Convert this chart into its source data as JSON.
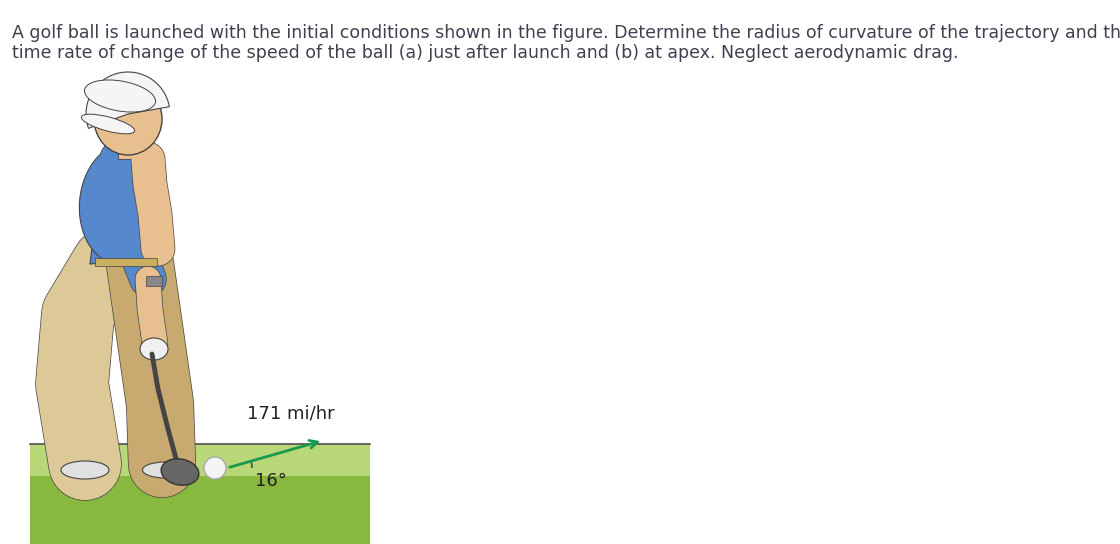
{
  "title_line1": "A golf ball is launched with the initial conditions shown in the figure. Determine the radius of curvature of the trajectory and the",
  "title_line2": "time rate of change of the speed of the ball (a) just after launch and (b) at apex. Neglect aerodynamic drag.",
  "title_fontsize": 12.5,
  "title_color": "#404050",
  "speed_label": "171 mi/hr",
  "angle_label": "16°",
  "arrow_color": "#1a9950",
  "label_fontsize": 13,
  "background_color": "#ffffff",
  "ground_green_light": "#b8d878",
  "ground_green_dark": "#88b840",
  "ground_border": "#505050",
  "skin_color": "#e8c090",
  "shirt_color": "#5588cc",
  "pants_color": "#ddc898",
  "pants_dark": "#c8aa70",
  "shoe_color": "#e0e0e0",
  "club_color": "#555555",
  "club_head_color": "#666666",
  "glove_color": "#f0f0f0",
  "cap_color": "#f5f5f5",
  "outline_color": "#444444"
}
